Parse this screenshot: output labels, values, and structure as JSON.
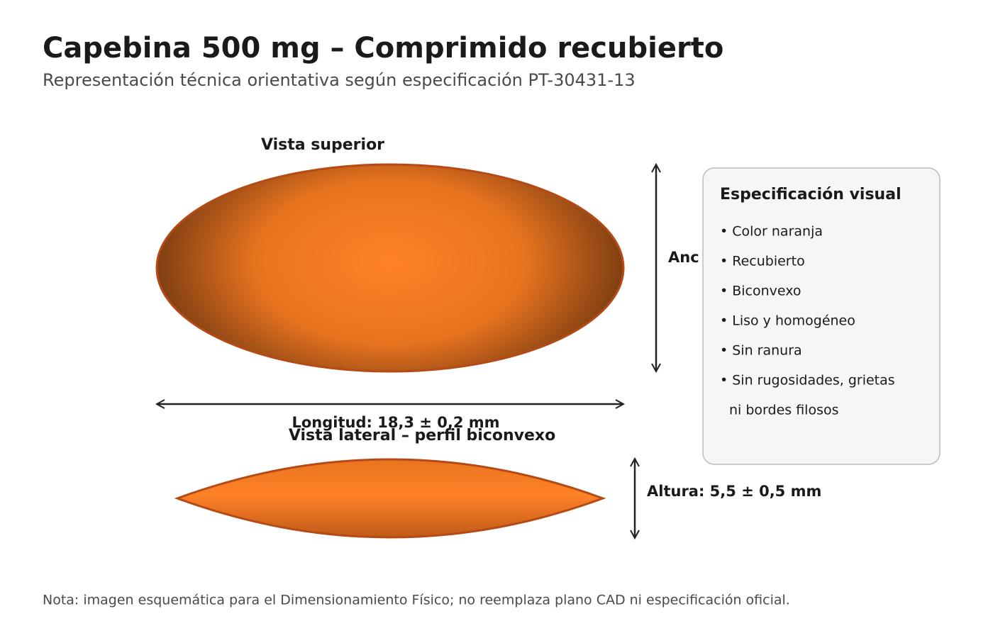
{
  "header": {
    "title": "Capebina 500 mg – Comprimido recubierto",
    "subtitle": "Representación técnica orientativa según especificación PT-30431-13"
  },
  "top_view": {
    "label": "Vista superior",
    "width_label": "Anc",
    "length_label": "Longitud: 18,3 ± 0,2 mm"
  },
  "side_view": {
    "label": "Vista lateral – perfil biconvexo",
    "height_label": "Altura: 5,5 ± 0,5 mm"
  },
  "spec_box": {
    "title": "Especificación visual",
    "items": [
      "• Color naranja",
      "• Recubierto",
      "• Biconvexo",
      "• Liso y homogéneo",
      "• Sin ranura",
      "• Sin rugosidades, grietas",
      "ni bordes filosos"
    ]
  },
  "note": "Nota: imagen esquemática para el Dimensionamiento Físico; no reemplaza plano CAD ni especificación oficial."
}
